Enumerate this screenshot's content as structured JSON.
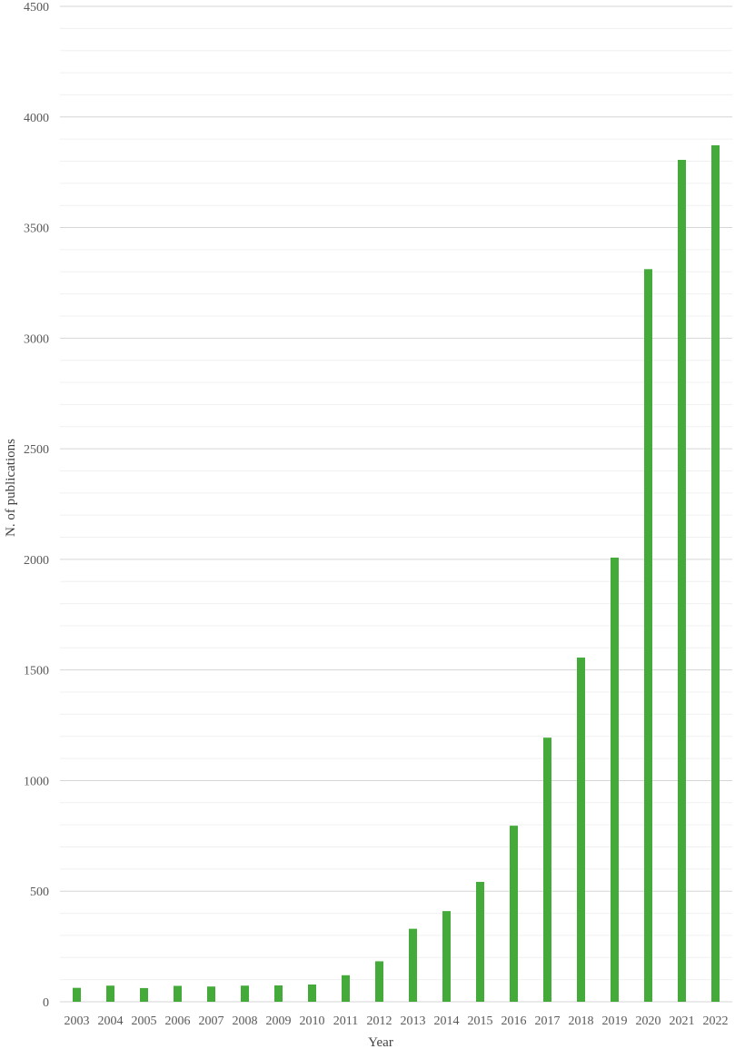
{
  "chart_data": {
    "type": "bar",
    "title": "",
    "xlabel": "Year",
    "ylabel": "N. of publications",
    "ylim": [
      0,
      4500
    ],
    "major_ticks": [
      0,
      500,
      1000,
      1500,
      2000,
      2500,
      3000,
      3500,
      4000,
      4500
    ],
    "minor_step": 100,
    "grid": true,
    "legend": "none",
    "categories": [
      "2003",
      "2004",
      "2005",
      "2006",
      "2007",
      "2008",
      "2009",
      "2010",
      "2011",
      "2012",
      "2013",
      "2014",
      "2015",
      "2016",
      "2017",
      "2018",
      "2019",
      "2020",
      "2021",
      "2022"
    ],
    "values": [
      63,
      73,
      62,
      72,
      69,
      73,
      74,
      78,
      120,
      183,
      330,
      410,
      542,
      796,
      1194,
      1556,
      2008,
      3312,
      3806,
      3872
    ]
  },
  "colors": {
    "bar": "#44ab3a",
    "major_grid": "#d6d6d6",
    "minor_grid": "#f0f0f0",
    "axis_text": "#595959"
  }
}
